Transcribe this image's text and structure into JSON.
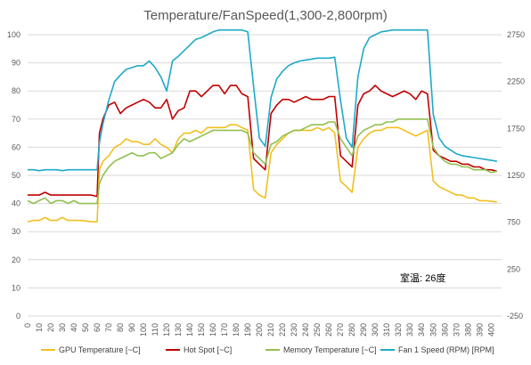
{
  "chart_data": {
    "type": "line",
    "title": "Temperature/FanSpeed(1,300-2,800rpm)",
    "xlabel": "",
    "ylabel": "",
    "x": [
      0,
      5,
      10,
      15,
      20,
      25,
      30,
      35,
      40,
      45,
      50,
      55,
      60,
      62,
      65,
      70,
      75,
      80,
      85,
      90,
      95,
      100,
      105,
      110,
      115,
      120,
      125,
      130,
      135,
      140,
      145,
      150,
      155,
      160,
      165,
      170,
      175,
      180,
      185,
      190,
      195,
      200,
      205,
      210,
      215,
      220,
      225,
      230,
      235,
      240,
      245,
      250,
      255,
      260,
      265,
      270,
      275,
      280,
      285,
      290,
      295,
      300,
      305,
      310,
      315,
      320,
      325,
      330,
      335,
      340,
      345,
      350,
      355,
      360,
      365,
      370,
      375,
      380,
      385,
      390,
      395,
      400,
      405
    ],
    "x_ticks": [
      "0",
      "10",
      "20",
      "30",
      "40",
      "50",
      "60",
      "70",
      "80",
      "90",
      "100",
      "110",
      "120",
      "130",
      "140",
      "150",
      "160",
      "170",
      "180",
      "190",
      "200",
      "210",
      "220",
      "230",
      "240",
      "250",
      "260",
      "270",
      "280",
      "290",
      "300",
      "310",
      "320",
      "330",
      "340",
      "350",
      "360",
      "370",
      "380",
      "390",
      "400"
    ],
    "xlim": [
      0,
      409
    ],
    "y_left": {
      "ylim": [
        0,
        100
      ],
      "ticks": [
        "0",
        "10",
        "20",
        "30",
        "40",
        "50",
        "60",
        "70",
        "80",
        "90",
        "100"
      ]
    },
    "y_right": {
      "ylim": [
        -250,
        2750
      ],
      "ticks": [
        "-250",
        "250",
        "750",
        "1250",
        "1750",
        "2250",
        "2750"
      ]
    },
    "grid": true,
    "legend_position": "bottom",
    "series": [
      {
        "name": "GPU Temperature [~C]",
        "axis": "left",
        "color": "#f0c020",
        "values": [
          33.5,
          34,
          34,
          35,
          34,
          34,
          35,
          34,
          34,
          34,
          33.8,
          33.5,
          33.5,
          52,
          55,
          57,
          60,
          61,
          63,
          62,
          62,
          61,
          61,
          63,
          61,
          60,
          58,
          63,
          65,
          65,
          66,
          65,
          67,
          67,
          67,
          67,
          68,
          68,
          67,
          66,
          45,
          43,
          42,
          58,
          61,
          63,
          65,
          66,
          66,
          66,
          66,
          67,
          66,
          67,
          65,
          48,
          46,
          44,
          60,
          63,
          65,
          66,
          66,
          67,
          67,
          67,
          66,
          65,
          64,
          65,
          66,
          48,
          46,
          45,
          44,
          43,
          43,
          42,
          42,
          41,
          41,
          40.8,
          40.5
        ]
      },
      {
        "name": "Hot Spot [~C]",
        "axis": "left",
        "color": "#c00000",
        "values": [
          43,
          43,
          43,
          44,
          43,
          43,
          43,
          43,
          43,
          43,
          43,
          43,
          42.5,
          65,
          70,
          75,
          76,
          72,
          74,
          75,
          76,
          77,
          76,
          74,
          74,
          77,
          70,
          73,
          74,
          80,
          80,
          78,
          80,
          82,
          82,
          79,
          82,
          82,
          79,
          78,
          56,
          54,
          52,
          72,
          75,
          77,
          77,
          76,
          77,
          78,
          77,
          77,
          77,
          78,
          78,
          57,
          55,
          53,
          75,
          79,
          80,
          82,
          80,
          79,
          78,
          79,
          80,
          79,
          77,
          80,
          79,
          59,
          57,
          56,
          55,
          55,
          54,
          54,
          53,
          53,
          52,
          52,
          51.5
        ]
      },
      {
        "name": "Memory Temperature [~C]",
        "axis": "left",
        "color": "#92c050",
        "values": [
          41,
          40,
          41,
          42,
          40,
          41,
          41,
          40,
          41,
          40,
          40,
          40,
          40,
          47,
          50,
          53,
          55,
          56,
          57,
          58,
          57,
          57,
          58,
          58,
          56,
          57,
          58,
          61,
          63,
          62,
          63,
          64,
          65,
          66,
          66,
          66,
          66,
          66,
          66,
          65,
          58,
          56,
          54,
          61,
          62,
          64,
          65,
          66,
          66,
          67,
          68,
          68,
          68,
          69,
          69,
          63,
          60,
          57,
          64,
          66,
          67,
          68,
          68,
          69,
          69,
          70,
          70,
          70,
          70,
          70,
          70,
          60,
          57,
          55,
          54,
          54,
          53,
          53,
          52,
          52,
          52,
          51,
          51.5
        ]
      },
      {
        "name": "Fan 1 Speed (RPM) [RPM]",
        "axis": "right",
        "color": "#1fa9c9",
        "values": [
          1310,
          1310,
          1300,
          1310,
          1310,
          1310,
          1300,
          1310,
          1310,
          1310,
          1310,
          1310,
          1310,
          1600,
          1800,
          2050,
          2250,
          2320,
          2380,
          2400,
          2420,
          2420,
          2470,
          2400,
          2300,
          2150,
          2470,
          2520,
          2580,
          2640,
          2700,
          2720,
          2750,
          2780,
          2800,
          2800,
          2800,
          2800,
          2800,
          2780,
          2200,
          1650,
          1560,
          2080,
          2280,
          2360,
          2420,
          2450,
          2470,
          2480,
          2490,
          2500,
          2500,
          2500,
          2510,
          2050,
          1650,
          1550,
          2300,
          2600,
          2720,
          2750,
          2780,
          2790,
          2800,
          2800,
          2800,
          2800,
          2800,
          2800,
          2800,
          1900,
          1650,
          1560,
          1520,
          1480,
          1460,
          1450,
          1440,
          1430,
          1420,
          1410,
          1400
        ]
      }
    ],
    "annotations": [
      "室温: 26度"
    ]
  }
}
